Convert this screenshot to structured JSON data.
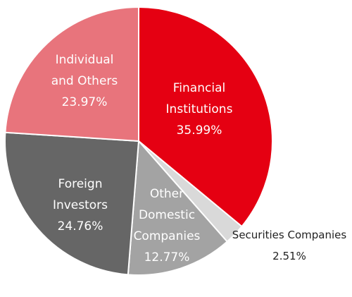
{
  "chart_data": {
    "type": "pie",
    "start_angle_deg": 0,
    "direction": "clockwise",
    "slices": [
      {
        "label_lines": [
          "Financial",
          "Institutions"
        ],
        "value": 35.99,
        "value_label": "35.99%",
        "color": "#e50012"
      },
      {
        "label_lines": [
          "Securities Companies"
        ],
        "value": 2.51,
        "value_label": "2.51%",
        "color": "#d9d9d9"
      },
      {
        "label_lines": [
          "Other",
          "Domestic",
          "Companies"
        ],
        "value": 12.77,
        "value_label": "12.77%",
        "color": "#a3a3a3"
      },
      {
        "label_lines": [
          "Foreign",
          "Investors"
        ],
        "value": 24.76,
        "value_label": "24.76%",
        "color": "#666666"
      },
      {
        "label_lines": [
          "Individual",
          "and Others"
        ],
        "value": 23.97,
        "value_label": "23.97%",
        "color": "#e8747c"
      }
    ]
  }
}
